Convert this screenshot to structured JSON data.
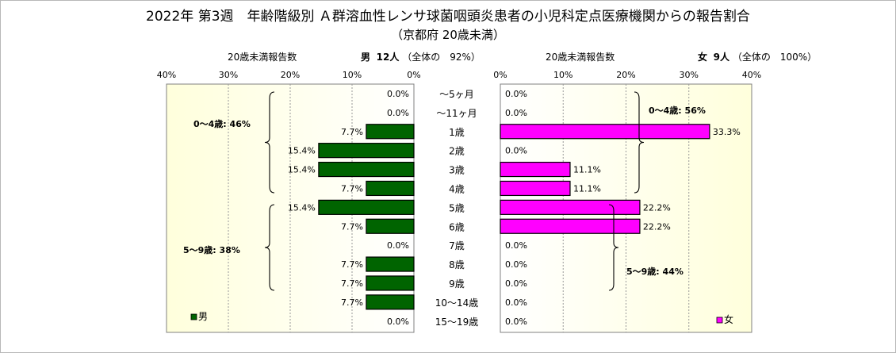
{
  "title": "2022年 第3週　年齢階級別 Ａ群溶血性レンサ球菌咽頭炎患者の小児科定点医療機関からの報告割合",
  "subtitle": "（京都府 20歳未満）",
  "colors": {
    "male": "#006400",
    "female": "#ff00ff",
    "plot_left_bg": "#ffffe6",
    "plot_right_bg": "#ffffe6"
  },
  "panels": {
    "left": {
      "header_label": "20歳未満報告数",
      "sex_label": "男",
      "count_label": "12人",
      "share_label": "（全体の　92%）",
      "legend_label": "男"
    },
    "right": {
      "header_label": "20歳未満報告数",
      "sex_label": "女",
      "count_label": "9人",
      "share_label": "（全体の　100%）",
      "legend_label": "女"
    }
  },
  "chart_data": {
    "type": "bar",
    "orientation": "horizontal-butterfly",
    "categories": [
      "～5ヶ月",
      "～11ヶ月",
      "1歳",
      "2歳",
      "3歳",
      "4歳",
      "5歳",
      "6歳",
      "7歳",
      "8歳",
      "9歳",
      "10～14歳",
      "15～19歳"
    ],
    "series": [
      {
        "name": "男",
        "values": [
          0.0,
          0.0,
          7.7,
          15.4,
          15.4,
          7.7,
          15.4,
          7.7,
          0.0,
          7.7,
          7.7,
          7.7,
          0.0
        ],
        "labels": [
          "0.0%",
          "0.0%",
          "7.7%",
          "15.4%",
          "15.4%",
          "7.7%",
          "15.4%",
          "7.7%",
          "0.0%",
          "7.7%",
          "7.7%",
          "7.7%",
          "0.0%"
        ]
      },
      {
        "name": "女",
        "values": [
          0.0,
          0.0,
          33.3,
          0.0,
          11.1,
          11.1,
          22.2,
          22.2,
          0.0,
          0.0,
          0.0,
          0.0,
          0.0
        ],
        "labels": [
          "0.0%",
          "0.0%",
          "33.3%",
          "0.0%",
          "11.1%",
          "11.1%",
          "22.2%",
          "22.2%",
          "0.0%",
          "0.0%",
          "0.0%",
          "0.0%",
          "0.0%"
        ]
      }
    ],
    "xlim": [
      0,
      40
    ],
    "left_ticks": [
      "40%",
      "30%",
      "20%",
      "10%",
      "0%"
    ],
    "right_ticks": [
      "0%",
      "10%",
      "20%",
      "30%",
      "40%"
    ],
    "grid": true,
    "annotations": {
      "male": [
        "0～4歳: 46%",
        "5～9歳: 38%"
      ],
      "female": [
        "0～4歳: 56%",
        "5～9歳: 44%"
      ]
    }
  }
}
